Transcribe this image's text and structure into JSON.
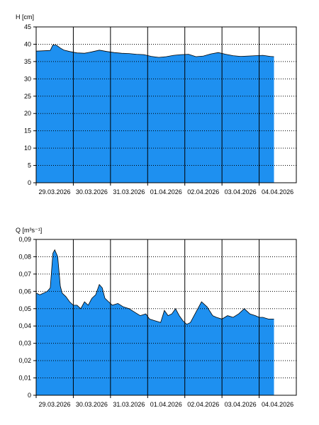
{
  "chart_data": [
    {
      "type": "area",
      "ylabel": "H [cm]",
      "ylim": [
        0,
        45
      ],
      "yticks": [
        0,
        5,
        10,
        15,
        20,
        25,
        30,
        35,
        40,
        45
      ],
      "ytick_labels": [
        "0",
        "5",
        "10",
        "15",
        "20",
        "25",
        "30",
        "35",
        "40",
        "45"
      ],
      "xlim_days": [
        0,
        7.0
      ],
      "xtick_labels": [
        "29.03.2026",
        "30.03.2026",
        "31.03.2026",
        "01.04.2026",
        "02.04.2026",
        "03.04.2026",
        "04.04.2026"
      ],
      "grid": "dotted horizontal, solid vertical at day boundaries",
      "fill_color": "#1e90f0",
      "series": [
        {
          "x": [
            0,
            0.2,
            0.38,
            0.45,
            0.55,
            0.65,
            0.75,
            0.9,
            1.1,
            1.3,
            1.5,
            1.7,
            1.9,
            2.1,
            2.3,
            2.5,
            2.7,
            2.9,
            3.1,
            3.3,
            3.5,
            3.7,
            3.9,
            4.1,
            4.3,
            4.5,
            4.7,
            4.9,
            5.1,
            5.3,
            5.5,
            5.7,
            5.9,
            6.1,
            6.3,
            6.4
          ],
          "values": [
            38.0,
            38.1,
            38.2,
            39.8,
            39.7,
            38.9,
            38.3,
            37.9,
            37.5,
            37.4,
            37.8,
            38.3,
            37.9,
            37.6,
            37.4,
            37.3,
            37.1,
            37.0,
            36.5,
            36.2,
            36.4,
            36.8,
            37.0,
            37.1,
            36.4,
            36.6,
            37.2,
            37.6,
            37.1,
            36.7,
            36.5,
            36.6,
            36.7,
            36.8,
            36.5,
            36.4
          ]
        }
      ]
    },
    {
      "type": "area",
      "ylabel": "Q [m³s⁻¹]",
      "ylim": [
        0,
        0.09
      ],
      "yticks": [
        0,
        0.01,
        0.02,
        0.03,
        0.04,
        0.05,
        0.06,
        0.07,
        0.08,
        0.09
      ],
      "ytick_labels": [
        "0",
        "0,01",
        "0,02",
        "0,03",
        "0,04",
        "0,05",
        "0,06",
        "0,07",
        "0,08",
        "0,09"
      ],
      "xlim_days": [
        0,
        7.0
      ],
      "xtick_labels": [
        "29.03.2026",
        "30.03.2026",
        "31.03.2026",
        "01.04.2026",
        "02.04.2026",
        "03.04.2026",
        "04.04.2026"
      ],
      "grid": "dotted horizontal, solid vertical at day boundaries",
      "fill_color": "#1e90f0",
      "series": [
        {
          "x": [
            0,
            0.1,
            0.2,
            0.3,
            0.38,
            0.45,
            0.5,
            0.58,
            0.65,
            0.7,
            0.8,
            0.9,
            1.0,
            1.1,
            1.2,
            1.3,
            1.4,
            1.5,
            1.6,
            1.7,
            1.78,
            1.85,
            1.95,
            2.05,
            2.2,
            2.35,
            2.5,
            2.65,
            2.8,
            2.95,
            3.05,
            3.2,
            3.35,
            3.45,
            3.55,
            3.65,
            3.75,
            3.85,
            3.95,
            4.05,
            4.15,
            4.3,
            4.45,
            4.6,
            4.75,
            4.85,
            5.0,
            5.15,
            5.3,
            5.45,
            5.6,
            5.75,
            5.9,
            6.0,
            6.1,
            6.25,
            6.4
          ],
          "values": [
            0.059,
            0.058,
            0.059,
            0.06,
            0.062,
            0.082,
            0.084,
            0.08,
            0.063,
            0.059,
            0.057,
            0.054,
            0.052,
            0.052,
            0.05,
            0.054,
            0.052,
            0.056,
            0.058,
            0.064,
            0.062,
            0.056,
            0.054,
            0.052,
            0.053,
            0.051,
            0.05,
            0.048,
            0.046,
            0.047,
            0.044,
            0.043,
            0.042,
            0.049,
            0.046,
            0.047,
            0.05,
            0.046,
            0.043,
            0.041,
            0.042,
            0.048,
            0.054,
            0.051,
            0.046,
            0.045,
            0.044,
            0.046,
            0.045,
            0.047,
            0.05,
            0.047,
            0.046,
            0.045,
            0.045,
            0.044,
            0.044
          ]
        }
      ]
    }
  ]
}
